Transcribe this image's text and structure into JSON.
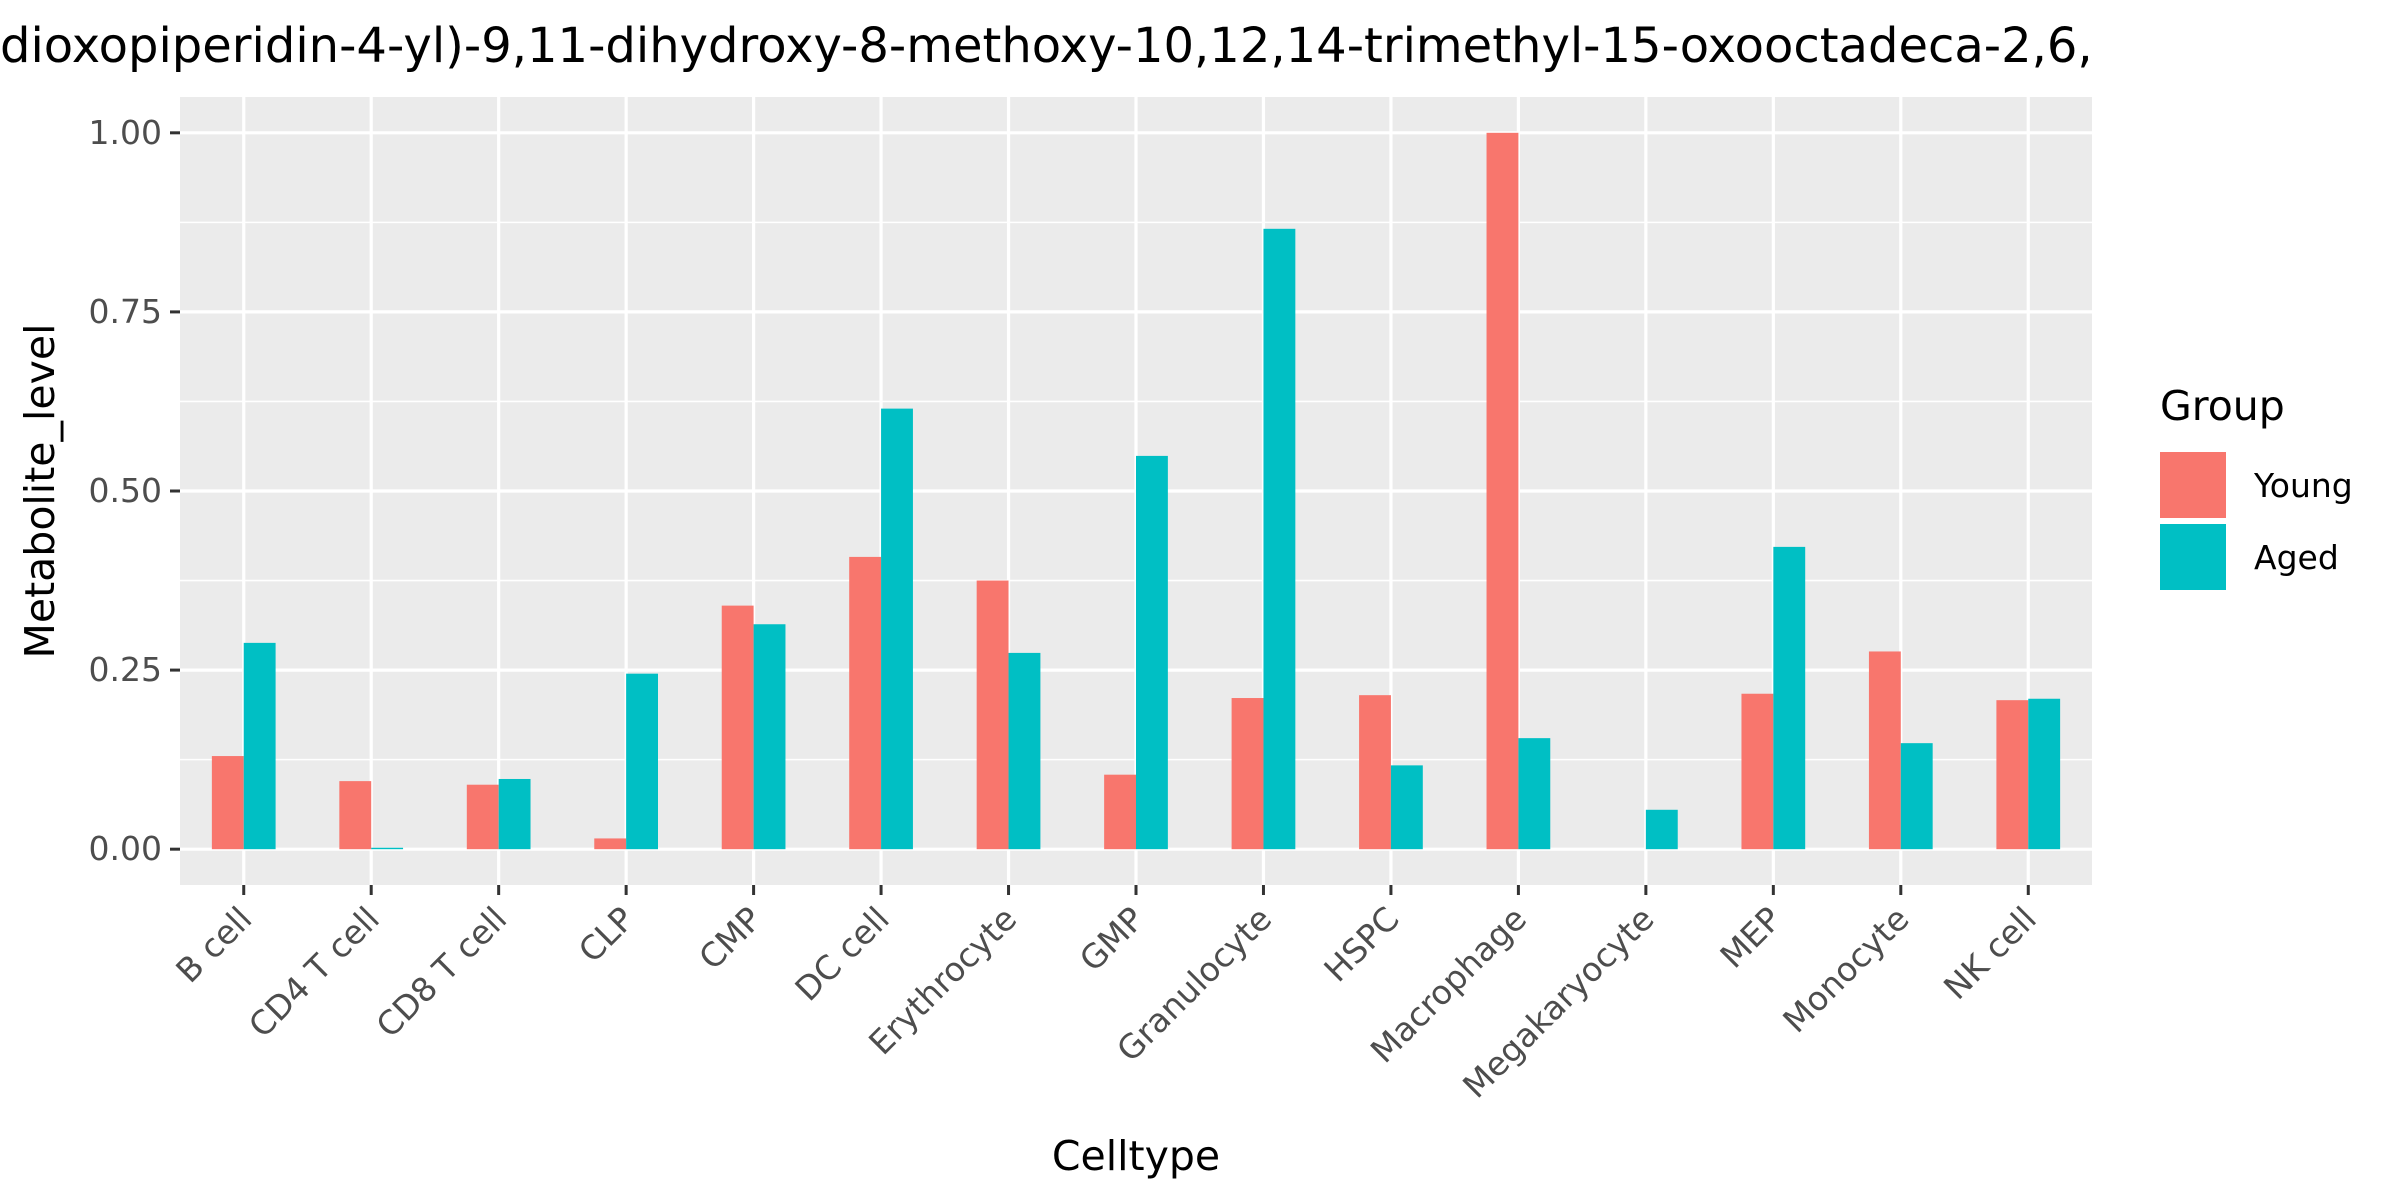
{
  "chart_data": {
    "type": "bar",
    "title": "dioxopiperidin-4-yl)-9,11-dihydroxy-8-methoxy-10,12,14-trimethyl-15-oxooctadeca-2,6,",
    "xlabel": "Celltype",
    "ylabel": "Metabolite_level",
    "ylim": [
      -0.05,
      1.05
    ],
    "yticks": [
      0.0,
      0.25,
      0.5,
      0.75,
      1.0
    ],
    "ytick_labels": [
      "0.00",
      "0.25",
      "0.50",
      "0.75",
      "1.00"
    ],
    "grid": true,
    "legend": {
      "title": "Group",
      "position": "right"
    },
    "categories": [
      "B cell",
      "CD4 T cell",
      "CD8 T cell",
      "CLP",
      "CMP",
      "DC cell",
      "Erythrocyte",
      "GMP",
      "Granulocyte",
      "HSPC",
      "Macrophage",
      "Megakaryocyte",
      "MEP",
      "Monocyte",
      "NK cell"
    ],
    "series": [
      {
        "name": "Young",
        "color": "#F8766D",
        "values": [
          0.13,
          0.095,
          0.09,
          0.015,
          0.34,
          0.408,
          0.375,
          0.104,
          0.211,
          0.215,
          1.0,
          0.0,
          0.217,
          0.276,
          0.208
        ]
      },
      {
        "name": "Aged",
        "color": "#00BFC4",
        "values": [
          0.288,
          0.002,
          0.098,
          0.245,
          0.314,
          0.615,
          0.274,
          0.549,
          0.866,
          0.117,
          0.155,
          0.055,
          0.422,
          0.148,
          0.21
        ]
      }
    ]
  }
}
